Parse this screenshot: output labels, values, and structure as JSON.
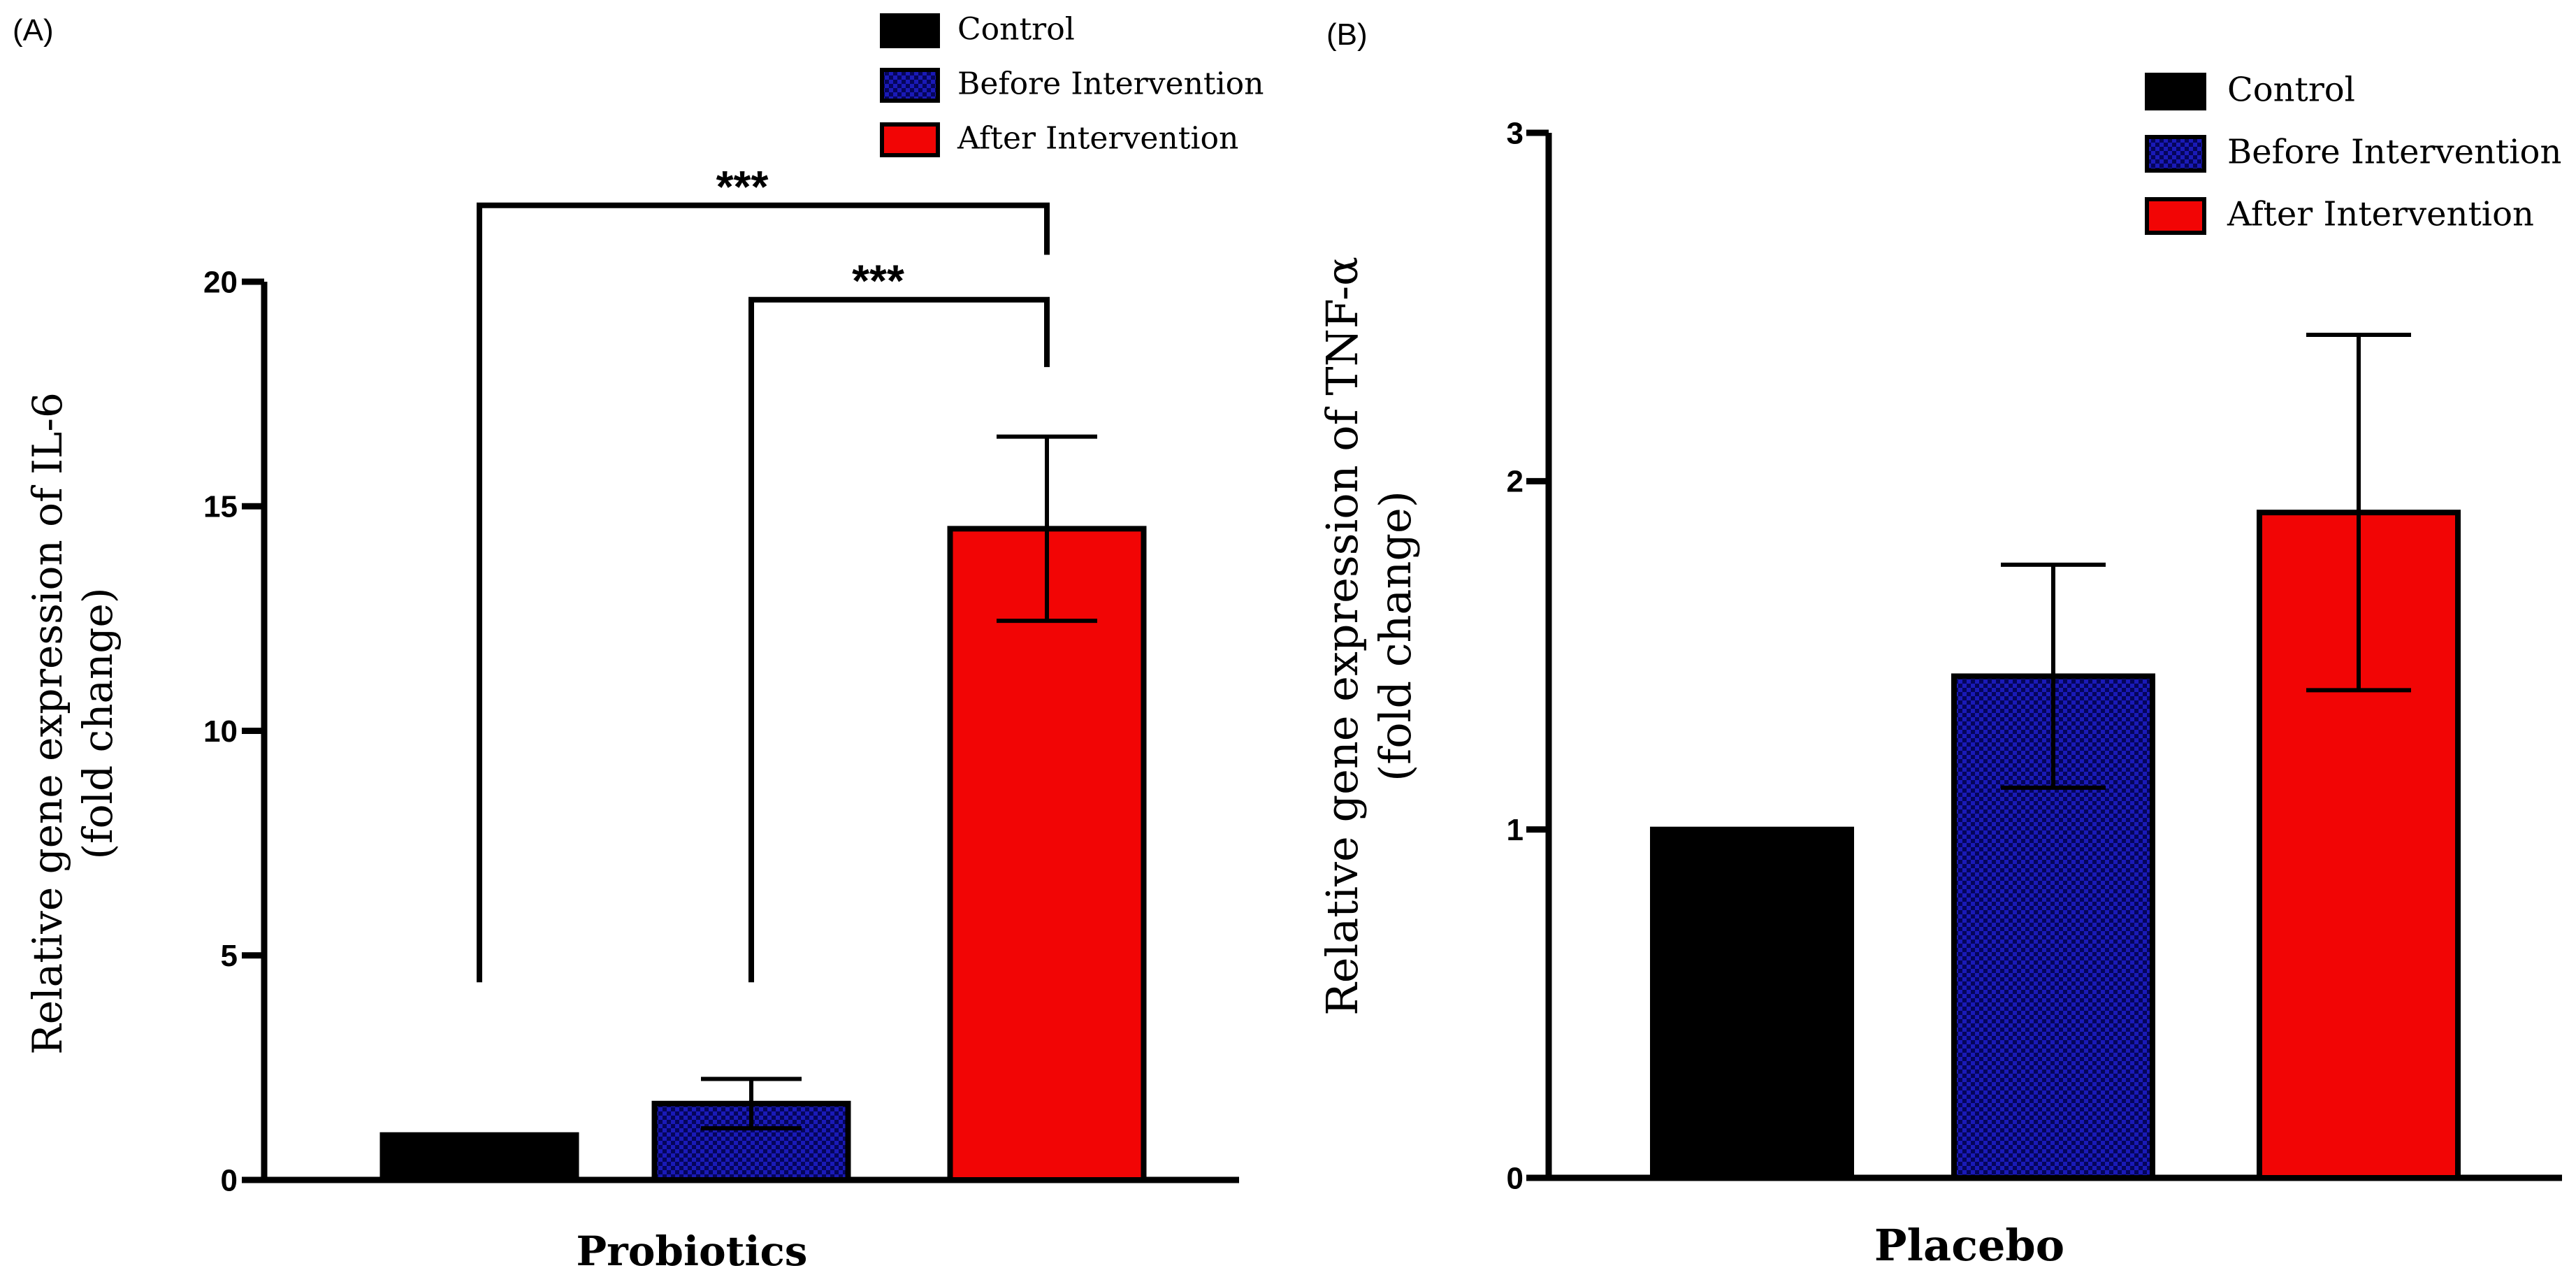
{
  "chart_data": [
    {
      "panel_label": "(A)",
      "type": "bar",
      "categories": [
        "Control",
        "Before Intervention",
        "After Intervention"
      ],
      "values": [
        1.0,
        1.7,
        14.5
      ],
      "errors": [
        0.0,
        0.55,
        2.05
      ],
      "bar_colors": [
        "#000000",
        "#1a1ab8",
        "#f20505"
      ],
      "bar_patterns": [
        "solid",
        "checker",
        "solid"
      ],
      "title": "",
      "xlabel": "Probiotics",
      "ylabel_line1": "Relative gene expression of IL-6",
      "ylabel_line2": "(fold change)",
      "ylim": [
        0,
        20
      ],
      "yticks": [
        0,
        5,
        10,
        15,
        20
      ],
      "ytick_labels": [
        "0",
        "5",
        "10",
        "15",
        "20"
      ],
      "legend": {
        "position": "top-right",
        "entries": [
          "Control",
          "Before Intervention",
          "After Intervention"
        ]
      },
      "significance": [
        {
          "from": 0,
          "to": 2,
          "label": "***",
          "start": 4.4,
          "level": 21.7,
          "end_gap": 20.6
        },
        {
          "from": 1,
          "to": 2,
          "label": "***",
          "start": 4.4,
          "level": 19.6,
          "end_gap": 18.1
        }
      ]
    },
    {
      "panel_label": "(B)",
      "type": "bar",
      "categories": [
        "Control",
        "Before Intervention",
        "After Intervention"
      ],
      "values": [
        1.0,
        1.44,
        1.91
      ],
      "errors": [
        0.0,
        0.32,
        0.51
      ],
      "bar_colors": [
        "#000000",
        "#1a1ab8",
        "#f20505"
      ],
      "bar_patterns": [
        "solid",
        "checker",
        "solid"
      ],
      "title": "",
      "xlabel": "Placebo",
      "ylabel_line1": "Relative gene expression of TNF-α",
      "ylabel_line2": "(fold change)",
      "ylim": [
        0,
        3
      ],
      "yticks": [
        0,
        1,
        2,
        3
      ],
      "ytick_labels": [
        "0",
        "1",
        "2",
        "3"
      ],
      "legend": {
        "position": "top-right",
        "entries": [
          "Control",
          "Before Intervention",
          "After Intervention"
        ]
      },
      "significance": []
    }
  ]
}
